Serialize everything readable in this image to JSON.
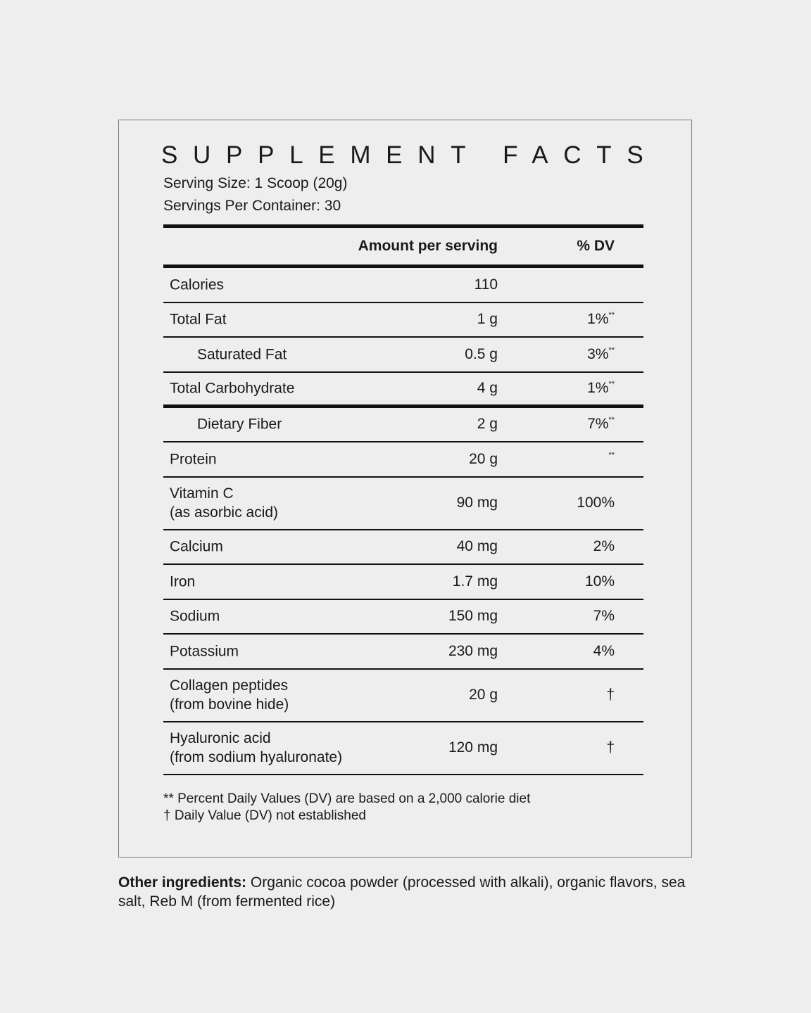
{
  "title": "SUPPLEMENT FACTS",
  "serving_size": "Serving Size: 1 Scoop (20g)",
  "servings_per_container": "Servings Per Container: 30",
  "table": {
    "header": {
      "amount": "Amount per serving",
      "dv": "% DV"
    },
    "rows": [
      {
        "name": "Calories",
        "amount": "110"
      },
      {
        "name": "Total Fat",
        "amount": "1 g",
        "dv": "1%",
        "dv_note": "**"
      },
      {
        "name": "Saturated Fat",
        "sub": true,
        "amount": "0.5 g",
        "dv": "3%",
        "dv_note": "**"
      },
      {
        "name": "Total Carbohydrate",
        "amount": "4 g",
        "dv": "1%",
        "dv_note": "**"
      },
      {
        "name": "Dietary Fiber",
        "sub": true,
        "amount": "2 g",
        "dv": "7%",
        "dv_note": "**"
      },
      {
        "name": "Protein",
        "amount": "20 g",
        "dv_note": "**"
      },
      {
        "name": "Vitamin C",
        "detail": "(as asorbic acid)",
        "amount": "90 mg",
        "dv": "100%"
      },
      {
        "name": "Calcium",
        "amount": "40 mg",
        "dv": "2%"
      },
      {
        "name": "Iron",
        "amount": "1.7 mg",
        "dv": "10%"
      },
      {
        "name": "Sodium",
        "amount": "150 mg",
        "dv": "7%"
      },
      {
        "name": "Potassium",
        "amount": "230 mg",
        "dv": "4%"
      },
      {
        "name": "Collagen peptides",
        "detail": "(from bovine hide)",
        "amount": "20 g",
        "dv": "†"
      },
      {
        "name": "Hyaluronic acid",
        "detail": "(from sodium hyaluronate)",
        "amount": "120 mg",
        "dv": "†"
      }
    ]
  },
  "footnotes": [
    "** Percent Daily Values (DV) are based on a 2,000 calorie diet",
    "† Daily Value (DV) not established"
  ],
  "other_ingredients": {
    "label": "Other ingredients:",
    "text": "Organic cocoa powder (processed with alkali), organic flavors, sea salt, Reb M (from fermented rice)"
  }
}
